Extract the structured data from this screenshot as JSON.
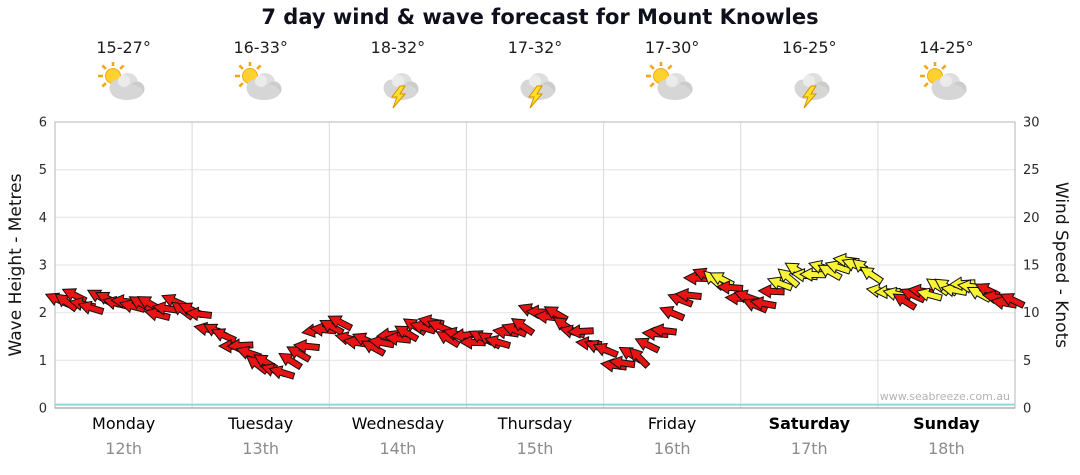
{
  "title": "7 day wind & wave forecast for Mount Knowles",
  "watermark": "www.seabreeze.com.au",
  "left_axis": {
    "label": "Wave Height - Metres",
    "ticks": [
      0,
      1,
      2,
      3,
      4,
      5,
      6
    ]
  },
  "right_axis": {
    "label": "Wind Speed - Knots",
    "ticks": [
      0,
      5,
      10,
      15,
      20,
      25,
      30
    ]
  },
  "days": [
    {
      "name": "Monday",
      "date": "12th",
      "temp_range": "15-27°",
      "icon": "sun-cloud",
      "bold": false
    },
    {
      "name": "Tuesday",
      "date": "13th",
      "temp_range": "16-33°",
      "icon": "sun-cloud",
      "bold": false
    },
    {
      "name": "Wednesday",
      "date": "14th",
      "temp_range": "18-32°",
      "icon": "storm",
      "bold": false
    },
    {
      "name": "Thursday",
      "date": "15th",
      "temp_range": "17-32°",
      "icon": "storm",
      "bold": false
    },
    {
      "name": "Friday",
      "date": "16th",
      "temp_range": "17-30°",
      "icon": "sun-cloud",
      "bold": false
    },
    {
      "name": "Saturday",
      "date": "17th",
      "temp_range": "16-25°",
      "icon": "storm",
      "bold": true
    },
    {
      "name": "Sunday",
      "date": "18th",
      "temp_range": "14-25°",
      "icon": "sun-cloud",
      "bold": true
    }
  ],
  "colors": {
    "arrow_red": "#e81414",
    "arrow_yellow": "#f8f335",
    "wave_teal": "#8fd8d8",
    "grid": "#e3e3e3",
    "separator": "#d9d9d9",
    "border": "#b5b5b5",
    "axis_line": "#8a8a8a",
    "axis_text": "#2a2a2a"
  },
  "chart_data": {
    "type": "line",
    "subtype": "wind-direction-arrow-series",
    "title": "7 day wind & wave forecast for Mount Knowles",
    "x_axis": {
      "unit": "days",
      "range": [
        0,
        7
      ],
      "categories": [
        "Monday 12th",
        "Tuesday 13th",
        "Wednesday 14th",
        "Thursday 15th",
        "Friday 16th",
        "Saturday 17th",
        "Sunday 18th"
      ]
    },
    "y_left": {
      "label": "Wave Height - Metres",
      "range": [
        0,
        6
      ],
      "unit": "metres"
    },
    "y_right": {
      "label": "Wind Speed - Knots",
      "range": [
        0,
        30
      ],
      "unit": "knots"
    },
    "grid": true,
    "legend": "none",
    "series": [
      {
        "name": "Wind Speed",
        "axis": "right",
        "unit": "knots",
        "style": "direction-arrows",
        "color_map": {
          "r": "arrow_red",
          "y": "arrow_yellow"
        },
        "points": [
          {
            "t": 0.0,
            "v": 11.3,
            "c": "r",
            "d": 205
          },
          {
            "t": 0.12,
            "v": 11.8,
            "c": "r",
            "d": 198
          },
          {
            "t": 0.25,
            "v": 10.8,
            "c": "r",
            "d": 210
          },
          {
            "t": 0.38,
            "v": 11.5,
            "c": "r",
            "d": 192
          },
          {
            "t": 0.5,
            "v": 10.6,
            "c": "r",
            "d": 202
          },
          {
            "t": 0.62,
            "v": 11.3,
            "c": "r",
            "d": 195
          },
          {
            "t": 0.75,
            "v": 10.3,
            "c": "r",
            "d": 205
          },
          {
            "t": 0.88,
            "v": 10.8,
            "c": "r",
            "d": 198
          },
          {
            "t": 1.0,
            "v": 10.0,
            "c": "r",
            "d": 205
          },
          {
            "t": 1.15,
            "v": 8.3,
            "c": "r",
            "d": 196
          },
          {
            "t": 1.3,
            "v": 7.0,
            "c": "r",
            "d": 188
          },
          {
            "t": 1.45,
            "v": 5.0,
            "c": "r",
            "d": 200
          },
          {
            "t": 1.6,
            "v": 3.8,
            "c": "r",
            "d": 212
          },
          {
            "t": 1.7,
            "v": 4.5,
            "c": "r",
            "d": 204
          },
          {
            "t": 1.8,
            "v": 6.5,
            "c": "r",
            "d": 192
          },
          {
            "t": 1.92,
            "v": 8.0,
            "c": "r",
            "d": 185
          },
          {
            "t": 2.05,
            "v": 8.8,
            "c": "r",
            "d": 196
          },
          {
            "t": 2.15,
            "v": 7.3,
            "c": "r",
            "d": 206
          },
          {
            "t": 2.3,
            "v": 6.8,
            "c": "r",
            "d": 194
          },
          {
            "t": 2.45,
            "v": 7.3,
            "c": "r",
            "d": 188
          },
          {
            "t": 2.6,
            "v": 7.8,
            "c": "r",
            "d": 200
          },
          {
            "t": 2.72,
            "v": 9.3,
            "c": "r",
            "d": 208
          },
          {
            "t": 2.85,
            "v": 8.0,
            "c": "r",
            "d": 196
          },
          {
            "t": 3.0,
            "v": 7.3,
            "c": "r",
            "d": 188
          },
          {
            "t": 3.15,
            "v": 6.8,
            "c": "r",
            "d": 198
          },
          {
            "t": 3.3,
            "v": 7.8,
            "c": "r",
            "d": 205
          },
          {
            "t": 3.5,
            "v": 10.3,
            "c": "r",
            "d": 193
          },
          {
            "t": 3.65,
            "v": 9.3,
            "c": "r",
            "d": 202
          },
          {
            "t": 3.8,
            "v": 8.0,
            "c": "r",
            "d": 195
          },
          {
            "t": 3.95,
            "v": 6.8,
            "c": "r",
            "d": 187
          },
          {
            "t": 4.1,
            "v": 4.3,
            "c": "r",
            "d": 200
          },
          {
            "t": 4.25,
            "v": 5.5,
            "c": "r",
            "d": 210
          },
          {
            "t": 4.4,
            "v": 8.0,
            "c": "r",
            "d": 197
          },
          {
            "t": 4.55,
            "v": 11.0,
            "c": "r",
            "d": 188
          },
          {
            "t": 4.7,
            "v": 13.5,
            "c": "r",
            "d": 199
          },
          {
            "t": 4.8,
            "v": 13.8,
            "c": "y",
            "d": 206
          },
          {
            "t": 4.95,
            "v": 12.5,
            "c": "r",
            "d": 196
          },
          {
            "t": 5.1,
            "v": 10.8,
            "c": "r",
            "d": 188
          },
          {
            "t": 5.22,
            "v": 11.5,
            "c": "r",
            "d": 198
          },
          {
            "t": 5.32,
            "v": 13.8,
            "c": "y",
            "d": 207
          },
          {
            "t": 5.45,
            "v": 14.3,
            "c": "y",
            "d": 199
          },
          {
            "t": 5.6,
            "v": 14.5,
            "c": "y",
            "d": 190
          },
          {
            "t": 5.75,
            "v": 14.8,
            "c": "y",
            "d": 201
          },
          {
            "t": 5.85,
            "v": 15.3,
            "c": "y",
            "d": 209
          },
          {
            "t": 6.0,
            "v": 13.0,
            "c": "y",
            "d": 198
          },
          {
            "t": 6.12,
            "v": 11.8,
            "c": "y",
            "d": 190
          },
          {
            "t": 6.25,
            "v": 11.5,
            "c": "r",
            "d": 200
          },
          {
            "t": 6.4,
            "v": 12.3,
            "c": "y",
            "d": 206
          },
          {
            "t": 6.55,
            "v": 13.0,
            "c": "y",
            "d": 196
          },
          {
            "t": 6.68,
            "v": 12.8,
            "c": "y",
            "d": 188
          },
          {
            "t": 6.8,
            "v": 11.8,
            "c": "r",
            "d": 198
          },
          {
            "t": 6.9,
            "v": 11.3,
            "c": "r",
            "d": 204
          },
          {
            "t": 7.0,
            "v": 10.8,
            "c": "r",
            "d": 197
          }
        ]
      },
      {
        "name": "Wave Height",
        "axis": "left",
        "unit": "metres",
        "style": "line",
        "color": "wave_teal",
        "points": [
          {
            "t": 0,
            "v": 0.05
          },
          {
            "t": 7,
            "v": 0.05
          }
        ]
      }
    ]
  }
}
